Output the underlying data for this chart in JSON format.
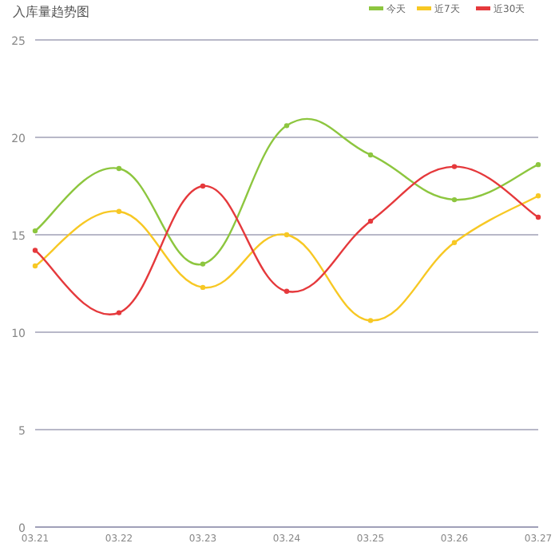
{
  "chart_data": {
    "type": "line",
    "title": "入库量趋势图",
    "categories": [
      "03.21",
      "03.22",
      "03.23",
      "03.24",
      "03.25",
      "03.26",
      "03.27"
    ],
    "series": [
      {
        "name": "今天",
        "color": "#8dc63f",
        "values": [
          15.2,
          18.4,
          13.5,
          20.6,
          19.1,
          16.8,
          18.6
        ]
      },
      {
        "name": "近7天",
        "color": "#f7c824",
        "values": [
          13.4,
          16.2,
          12.3,
          15.0,
          10.6,
          14.6,
          17.0
        ]
      },
      {
        "name": "近30天",
        "color": "#e5393c",
        "values": [
          14.2,
          11.0,
          17.5,
          12.1,
          15.7,
          18.5,
          15.9
        ]
      }
    ],
    "ylim": [
      0,
      25
    ],
    "yticks": [
      0,
      5,
      10,
      15,
      20,
      25
    ],
    "grid": "y",
    "legend": "top right",
    "marker": "circle",
    "line_style": "solid"
  }
}
